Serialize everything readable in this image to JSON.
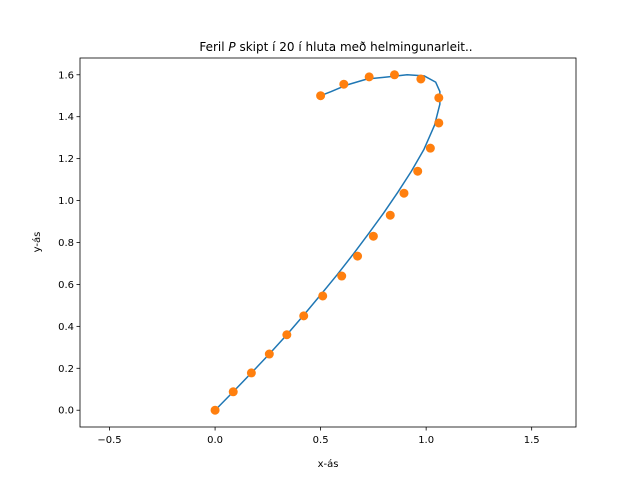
{
  "chart_data": {
    "type": "line",
    "title_prefix": "Feril ",
    "title_var": "P",
    "title_suffix": " skipt í 20 í hluta með helmingunarleit..",
    "xlabel": "x-ás",
    "ylabel": "y-ás",
    "xlim": [
      -0.64,
      1.71
    ],
    "ylim": [
      -0.08,
      1.68
    ],
    "xticks": [
      -0.5,
      0.0,
      0.5,
      1.0,
      1.5
    ],
    "xtick_labels": [
      "−0.5",
      "0.0",
      "0.5",
      "1.0",
      "1.5"
    ],
    "yticks": [
      0.0,
      0.2,
      0.4,
      0.6,
      0.8,
      1.0,
      1.2,
      1.4,
      1.6
    ],
    "ytick_labels": [
      "0.0",
      "0.2",
      "0.4",
      "0.6",
      "0.8",
      "1.0",
      "1.2",
      "1.4",
      "1.6"
    ],
    "grid": false,
    "colors": {
      "curve": "#1f77b4",
      "points": "#ff7f0e"
    },
    "series": [
      {
        "kind": "curve",
        "x": [
          0.0,
          0.086,
          0.172,
          0.257,
          0.34,
          0.421,
          0.5,
          0.579,
          0.655,
          0.728,
          0.798,
          0.866,
          0.93,
          0.99,
          1.04,
          1.065,
          1.065,
          1.045,
          0.99,
          0.91,
          0.82,
          0.72,
          0.62,
          0.55,
          0.5
        ],
        "y": [
          0.0,
          0.088,
          0.178,
          0.268,
          0.36,
          0.455,
          0.55,
          0.647,
          0.745,
          0.843,
          0.94,
          1.04,
          1.14,
          1.245,
          1.36,
          1.46,
          1.52,
          1.565,
          1.595,
          1.6,
          1.59,
          1.58,
          1.55,
          1.52,
          1.5
        ]
      },
      {
        "kind": "points",
        "x": [
          0.0,
          0.086,
          0.172,
          0.257,
          0.34,
          0.42,
          0.51,
          0.6,
          0.675,
          0.75,
          0.83,
          0.895,
          0.96,
          1.02,
          1.06,
          1.06,
          0.975,
          0.85,
          0.73,
          0.61,
          0.5
        ],
        "y": [
          0.0,
          0.088,
          0.178,
          0.268,
          0.36,
          0.45,
          0.545,
          0.64,
          0.735,
          0.83,
          0.93,
          1.035,
          1.14,
          1.25,
          1.37,
          1.49,
          1.58,
          1.6,
          1.59,
          1.555,
          1.5
        ]
      }
    ]
  }
}
